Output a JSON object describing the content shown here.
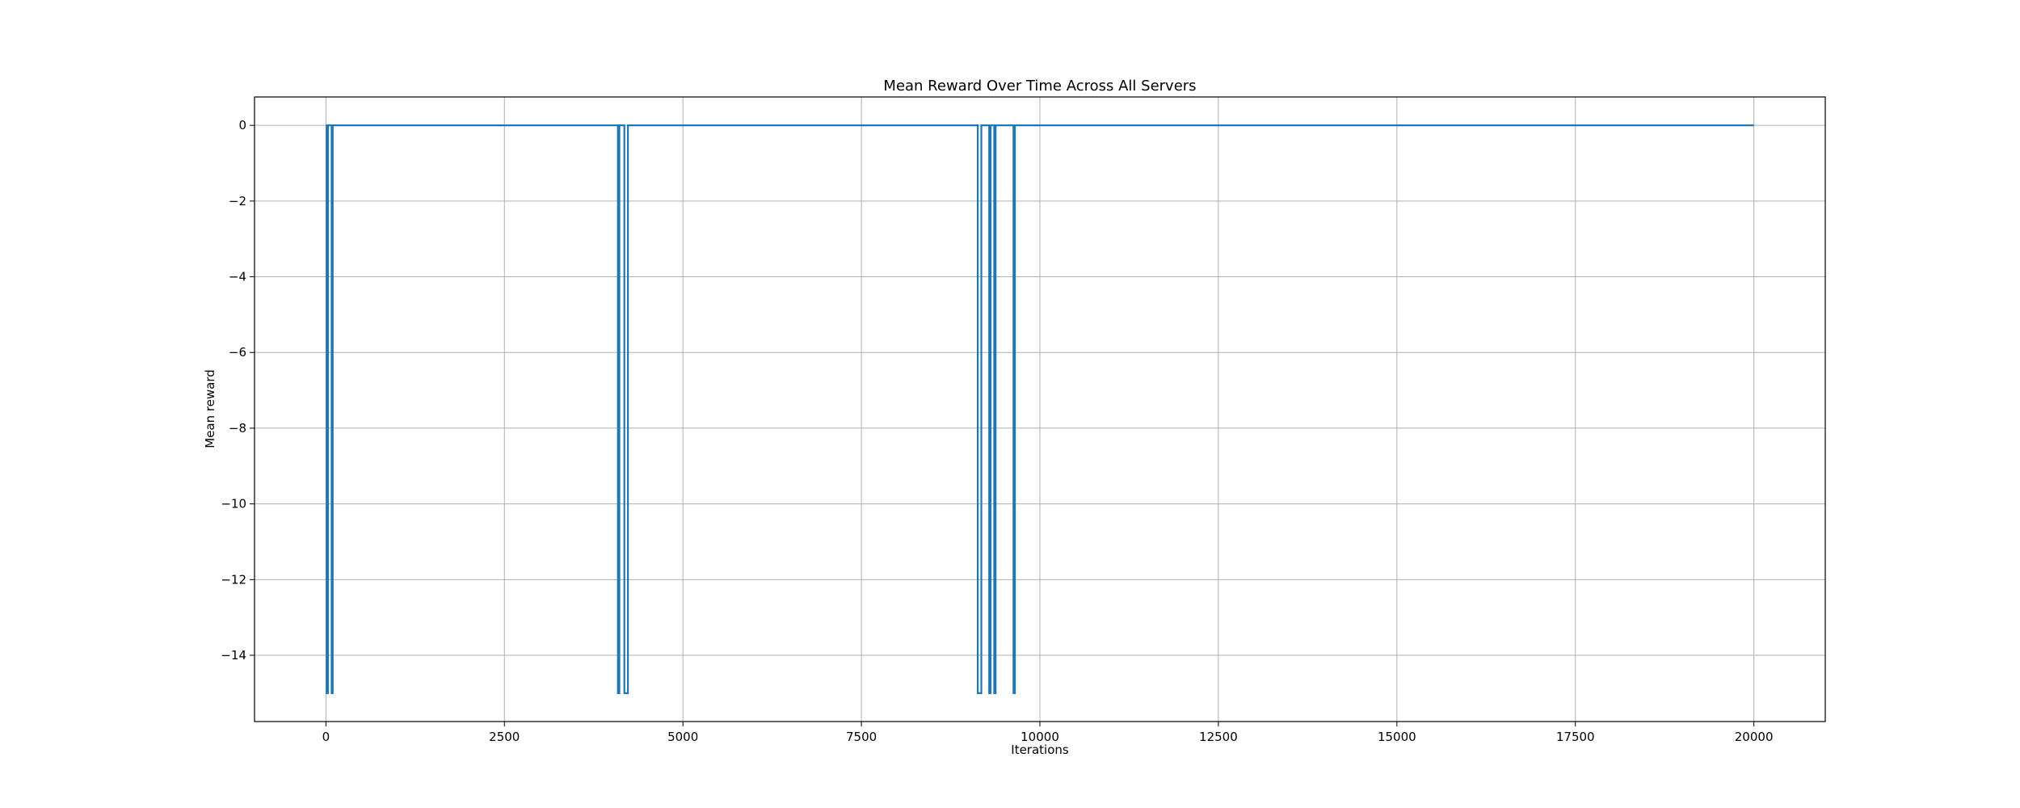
{
  "chart_data": {
    "type": "line",
    "title": "Mean Reward Over Time Across All Servers",
    "xlabel": "Iterations",
    "ylabel": "Mean reward",
    "xlim": [
      -1000,
      21000
    ],
    "ylim": [
      -15.75,
      0.75
    ],
    "xticks": [
      0,
      2500,
      5000,
      7500,
      10000,
      12500,
      15000,
      17500,
      20000
    ],
    "yticks": [
      0,
      -2,
      -4,
      -6,
      -8,
      -10,
      -12,
      -14
    ],
    "grid": true,
    "series": [
      {
        "color": "#1f77b4",
        "points": [
          [
            0,
            0
          ],
          [
            10,
            0
          ],
          [
            10,
            -15
          ],
          [
            30,
            -15
          ],
          [
            30,
            0
          ],
          [
            80,
            0
          ],
          [
            80,
            -15
          ],
          [
            95,
            -15
          ],
          [
            95,
            0
          ],
          [
            4090,
            0
          ],
          [
            4090,
            -15
          ],
          [
            4110,
            -15
          ],
          [
            4110,
            0
          ],
          [
            4180,
            0
          ],
          [
            4180,
            -15
          ],
          [
            4230,
            -15
          ],
          [
            4230,
            0
          ],
          [
            9130,
            0
          ],
          [
            9130,
            -15
          ],
          [
            9180,
            -15
          ],
          [
            9180,
            0
          ],
          [
            9290,
            0
          ],
          [
            9290,
            -15
          ],
          [
            9310,
            -15
          ],
          [
            9310,
            0
          ],
          [
            9360,
            0
          ],
          [
            9360,
            -15
          ],
          [
            9380,
            -15
          ],
          [
            9380,
            0
          ],
          [
            9630,
            0
          ],
          [
            9630,
            -15
          ],
          [
            9650,
            -15
          ],
          [
            9650,
            0
          ],
          [
            20000,
            0
          ]
        ]
      }
    ]
  }
}
